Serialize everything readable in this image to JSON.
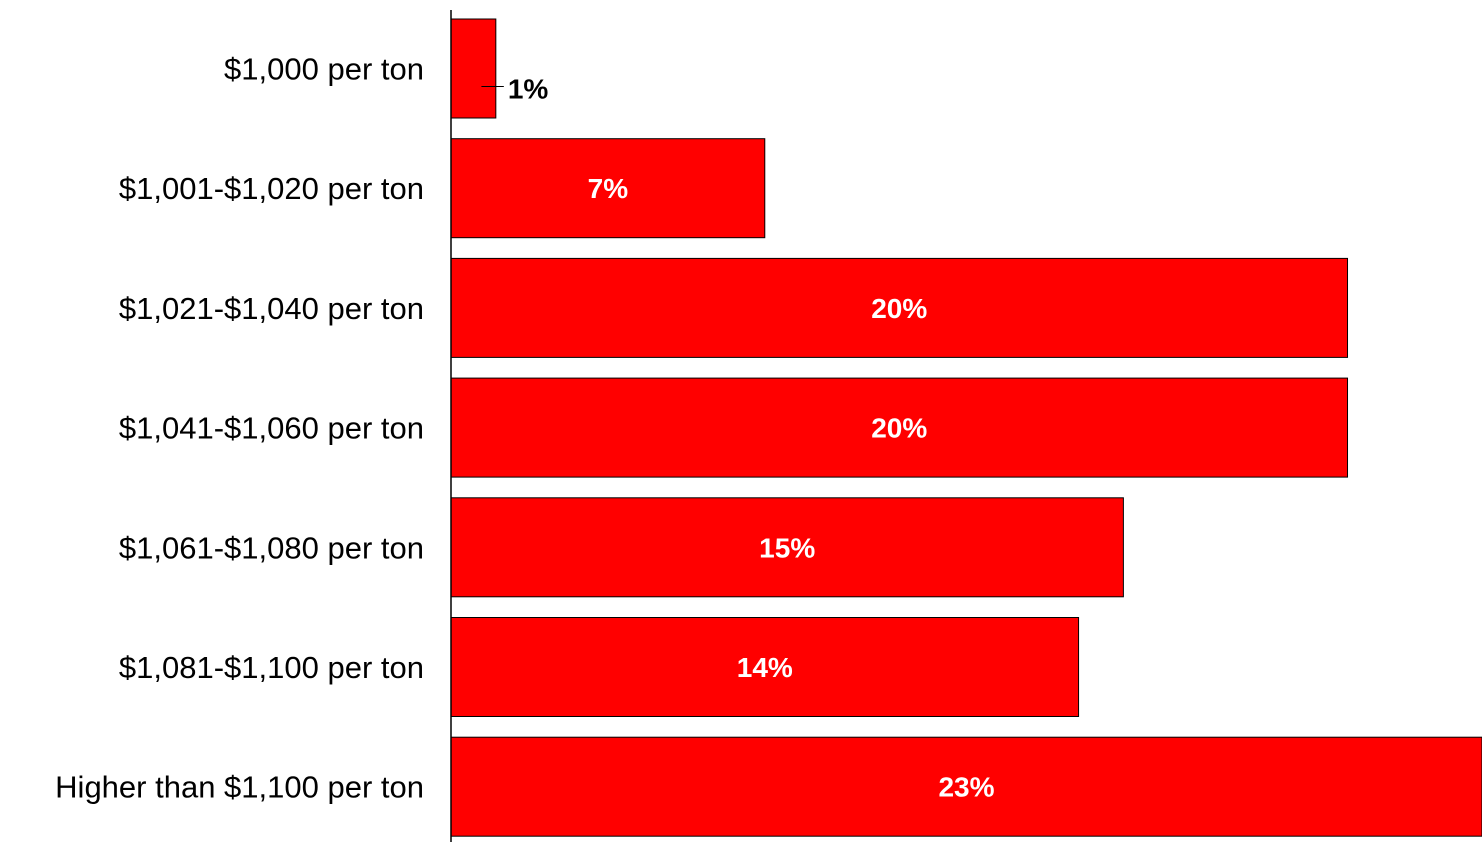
{
  "chart_data": {
    "type": "bar",
    "orientation": "horizontal",
    "categories": [
      "$1,000 per ton",
      "$1,001-$1,020 per ton",
      "$1,021-$1,040 per ton",
      "$1,041-$1,060 per ton",
      "$1,061-$1,080 per ton",
      "$1,081-$1,100 per ton",
      "Higher than $1,100 per ton"
    ],
    "values": [
      1,
      7,
      20,
      20,
      15,
      14,
      23
    ],
    "data_labels": [
      "1%",
      "7%",
      "20%",
      "20%",
      "15%",
      "14%",
      "23%"
    ],
    "unit": "%",
    "xlim": [
      0,
      23
    ],
    "grid": false,
    "legend": "none",
    "bar_color": "#ff0000",
    "bar_border_color": "#000000",
    "inside_label_color": "#ffffff",
    "outside_label_color": "#000000"
  }
}
